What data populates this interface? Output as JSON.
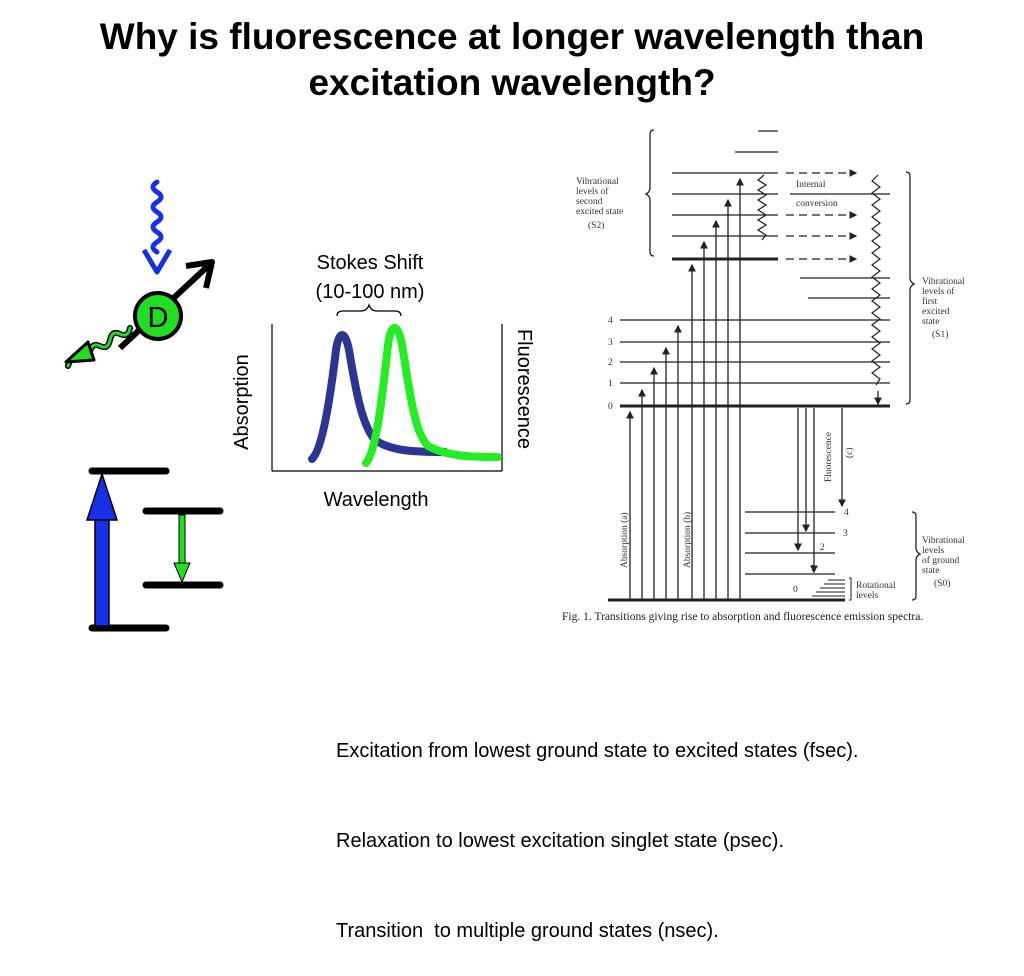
{
  "title": {
    "line1": "Why is fluorescence at longer wavelength than",
    "line2": "excitation wavelength?"
  },
  "donor_icon": {
    "label": "D"
  },
  "spectrum": {
    "stokes_label_1": "Stokes Shift",
    "stokes_label_2": "(10-100 nm)",
    "absorption_label": "Absorption",
    "fluorescence_label": "Fluorescence",
    "wavelength_label": "Wavelength"
  },
  "jablonski": {
    "s2_label": [
      "Vibrational",
      "levels of",
      "second",
      "excited state",
      "(S2)"
    ],
    "internal_conversion": [
      "Internal",
      "conversion"
    ],
    "s1_label": [
      "Vibrational",
      "levels of",
      "first",
      "excited",
      "state",
      "(S1)"
    ],
    "excited_levels": [
      "4",
      "3",
      "2",
      "1",
      "0"
    ],
    "fluorescence_arrow_label": [
      "Fluorescence",
      "(c)"
    ],
    "absorption_a": "Absorption (a)",
    "absorption_b": "Absorption (b)",
    "ground_levels": [
      "4",
      "3",
      "2",
      "1",
      "0"
    ],
    "rotational_label": [
      "Rotational",
      "levels"
    ],
    "s0_label": [
      "Vibrational",
      "levels",
      "of ground",
      "state",
      "(S0)"
    ],
    "caption": "Fig. 1.  Transitions giving rise to absorption and fluorescence emission spectra."
  },
  "notes": [
    "Excitation from lowest ground state to excited states (fsec).",
    "Relaxation to lowest excitation singlet state (psec).",
    "Transition  to multiple ground states (nsec)."
  ],
  "colors": {
    "absorption_blue": "#2b3694",
    "fluorescence_green": "#22ee22",
    "arrow_blue": "#1530e8",
    "donor_green": "#22dd22"
  }
}
